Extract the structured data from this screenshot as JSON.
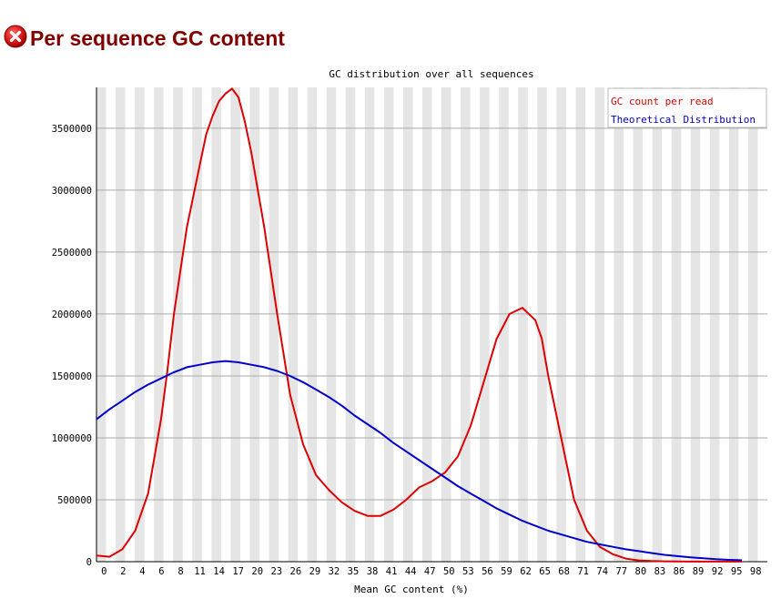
{
  "header": {
    "title": "Per sequence GC content",
    "status_icon": "error-icon",
    "status_color": "#cc0000",
    "title_color": "#800000"
  },
  "chart_data": {
    "type": "line",
    "title": "GC distribution over all sequences",
    "xlabel": "Mean GC content (%)",
    "ylabel": "",
    "x_tick_labels": [
      "0",
      "2",
      "4",
      "6",
      "8",
      "11",
      "14",
      "17",
      "20",
      "23",
      "26",
      "29",
      "32",
      "35",
      "38",
      "41",
      "44",
      "47",
      "50",
      "53",
      "56",
      "59",
      "62",
      "65",
      "68",
      "71",
      "74",
      "77",
      "80",
      "83",
      "86",
      "89",
      "92",
      "95",
      "98"
    ],
    "y_ticks": [
      0,
      500000,
      1000000,
      1500000,
      2000000,
      2500000,
      3000000,
      3500000
    ],
    "xlim": [
      0,
      100
    ],
    "ylim": [
      0,
      3830000
    ],
    "grid": true,
    "legend_position": "top-right",
    "colors": {
      "gc_count": "#dd0000",
      "theoretical": "#0000cc",
      "band": "#e5e5e5",
      "gridline": "#aaaaaa"
    },
    "series": [
      {
        "name": "GC count per read",
        "color": "#dd0000",
        "x": [
          0,
          2,
          4,
          6,
          8,
          9,
          10,
          11,
          12,
          14,
          16,
          17,
          18,
          19,
          20,
          21,
          22,
          23,
          24,
          26,
          28,
          30,
          32,
          34,
          36,
          38,
          40,
          42,
          44,
          46,
          48,
          50,
          52,
          54,
          56,
          58,
          60,
          62,
          64,
          66,
          68,
          69,
          70,
          72,
          74,
          76,
          78,
          80,
          82,
          84,
          86,
          88,
          90,
          92,
          95,
          98,
          100
        ],
        "y": [
          50000,
          40000,
          100000,
          250000,
          550000,
          850000,
          1150000,
          1550000,
          2000000,
          2700000,
          3200000,
          3450000,
          3600000,
          3720000,
          3780000,
          3820000,
          3750000,
          3550000,
          3300000,
          2700000,
          2000000,
          1350000,
          950000,
          700000,
          580000,
          480000,
          410000,
          370000,
          370000,
          420000,
          500000,
          600000,
          650000,
          720000,
          850000,
          1100000,
          1450000,
          1800000,
          2000000,
          2050000,
          1950000,
          1800000,
          1500000,
          1000000,
          500000,
          250000,
          120000,
          60000,
          25000,
          10000,
          5000,
          3000,
          2000,
          1000,
          1000,
          1000,
          1000
        ]
      },
      {
        "name": "Theoretical Distribution",
        "color": "#0000cc",
        "x": [
          0,
          2,
          4,
          6,
          8,
          10,
          12,
          14,
          16,
          18,
          20,
          22,
          24,
          26,
          28,
          30,
          32,
          34,
          36,
          38,
          40,
          42,
          44,
          46,
          48,
          50,
          52,
          54,
          56,
          58,
          60,
          62,
          64,
          66,
          68,
          70,
          72,
          74,
          76,
          78,
          80,
          82,
          84,
          86,
          88,
          90,
          92,
          94,
          96,
          98,
          100
        ],
        "y": [
          1150000,
          1230000,
          1300000,
          1370000,
          1430000,
          1480000,
          1530000,
          1570000,
          1590000,
          1610000,
          1620000,
          1610000,
          1590000,
          1570000,
          1540000,
          1500000,
          1450000,
          1390000,
          1330000,
          1260000,
          1180000,
          1110000,
          1040000,
          960000,
          890000,
          820000,
          750000,
          680000,
          610000,
          550000,
          490000,
          430000,
          380000,
          330000,
          290000,
          250000,
          220000,
          190000,
          160000,
          140000,
          120000,
          100000,
          85000,
          70000,
          55000,
          45000,
          35000,
          28000,
          20000,
          15000,
          12000
        ]
      }
    ]
  }
}
